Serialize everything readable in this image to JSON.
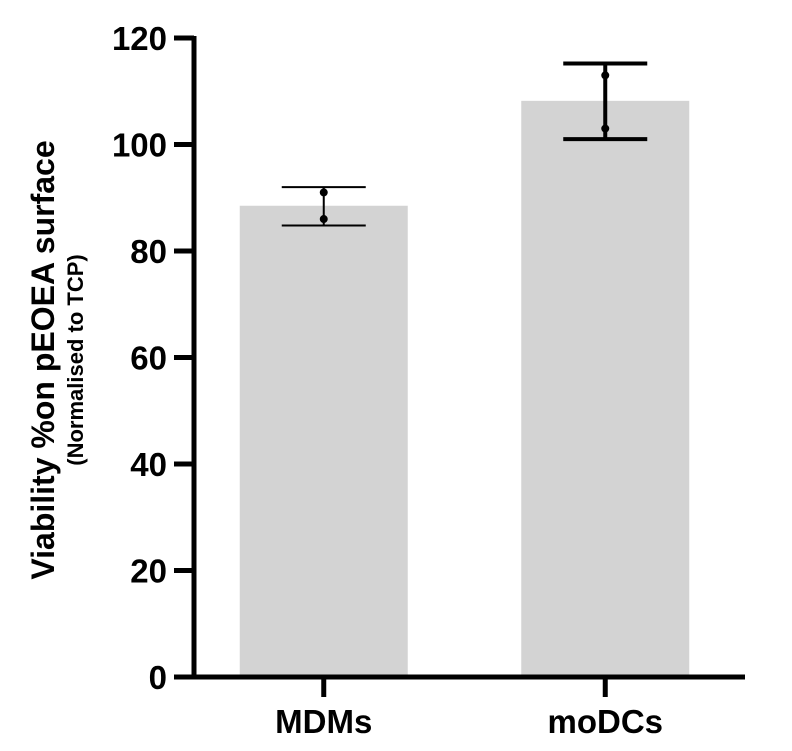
{
  "chart_data": {
    "type": "bar",
    "categories": [
      "MDMs",
      "moDCs"
    ],
    "values": [
      88.5,
      108.2
    ],
    "error_bars": [
      {
        "upper": 92.0,
        "lower": 84.8
      },
      {
        "upper": 115.2,
        "lower": 101.0
      }
    ],
    "points": [
      [
        91.0,
        86.0
      ],
      [
        113.0,
        103.0
      ]
    ],
    "ylabel": "Viability %on pEOEA surface",
    "ylabel_sub": "(Normalised to TCP)",
    "xlabel": "",
    "title": "",
    "ylim": [
      0,
      120
    ],
    "yticks": [
      0,
      20,
      40,
      60,
      80,
      100,
      120
    ],
    "bar_color": "#d3d3d3",
    "axis_color": "#000000",
    "grid": false
  }
}
